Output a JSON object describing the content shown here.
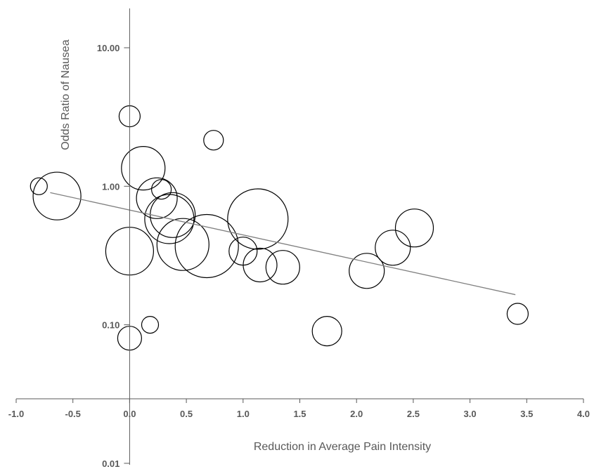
{
  "chart_data": {
    "type": "scatter",
    "subtype": "bubble",
    "title": "",
    "xlabel": "Reduction in Average Pain Intensity",
    "ylabel": "Odds Ratio of Nausea",
    "xlim": [
      -1.0,
      4.0
    ],
    "ylim": [
      0.01,
      20
    ],
    "y_scale": "log",
    "grid": false,
    "legend": "none",
    "x_ticks": [
      "-1.0",
      "-0.5",
      "0.0",
      "0.5",
      "1.0",
      "1.5",
      "2.0",
      "2.5",
      "3.0",
      "3.5",
      "4.0"
    ],
    "x_tick_values": [
      -1.0,
      -0.5,
      0.0,
      0.5,
      1.0,
      1.5,
      2.0,
      2.5,
      3.0,
      3.5,
      4.0
    ],
    "y_ticks": [
      "0.01",
      "0.10",
      "1.00",
      "10.00"
    ],
    "y_tick_values": [
      0.01,
      0.1,
      1.0,
      10.0
    ],
    "colors": {
      "bubble_stroke": "#000000",
      "trendline": "#808080",
      "axis": "#595959",
      "text": "#595959"
    },
    "points": [
      {
        "x": -0.8,
        "y": 1.0,
        "r": 12
      },
      {
        "x": -0.64,
        "y": 0.85,
        "r": 34
      },
      {
        "x": 0.0,
        "y": 3.2,
        "r": 15
      },
      {
        "x": 0.12,
        "y": 1.35,
        "r": 31
      },
      {
        "x": 0.74,
        "y": 2.15,
        "r": 14
      },
      {
        "x": 0.28,
        "y": 0.95,
        "r": 14
      },
      {
        "x": 0.24,
        "y": 0.82,
        "r": 29
      },
      {
        "x": 0.38,
        "y": 0.62,
        "r": 32
      },
      {
        "x": 0.35,
        "y": 0.58,
        "r": 35
      },
      {
        "x": 0.0,
        "y": 0.34,
        "r": 34
      },
      {
        "x": 0.47,
        "y": 0.38,
        "r": 37
      },
      {
        "x": 0.68,
        "y": 0.37,
        "r": 45
      },
      {
        "x": 1.13,
        "y": 0.58,
        "r": 43
      },
      {
        "x": 1.0,
        "y": 0.34,
        "r": 20
      },
      {
        "x": 1.15,
        "y": 0.27,
        "r": 24
      },
      {
        "x": 1.35,
        "y": 0.26,
        "r": 24
      },
      {
        "x": 2.09,
        "y": 0.245,
        "r": 25
      },
      {
        "x": 2.32,
        "y": 0.36,
        "r": 25
      },
      {
        "x": 2.51,
        "y": 0.5,
        "r": 27
      },
      {
        "x": 1.74,
        "y": 0.09,
        "r": 21
      },
      {
        "x": 0.18,
        "y": 0.1,
        "r": 12
      },
      {
        "x": 0.0,
        "y": 0.08,
        "r": 17
      },
      {
        "x": 3.42,
        "y": 0.12,
        "r": 15
      }
    ],
    "trendline": {
      "x": [
        -0.7,
        3.4
      ],
      "y": [
        0.9,
        0.165
      ]
    }
  }
}
